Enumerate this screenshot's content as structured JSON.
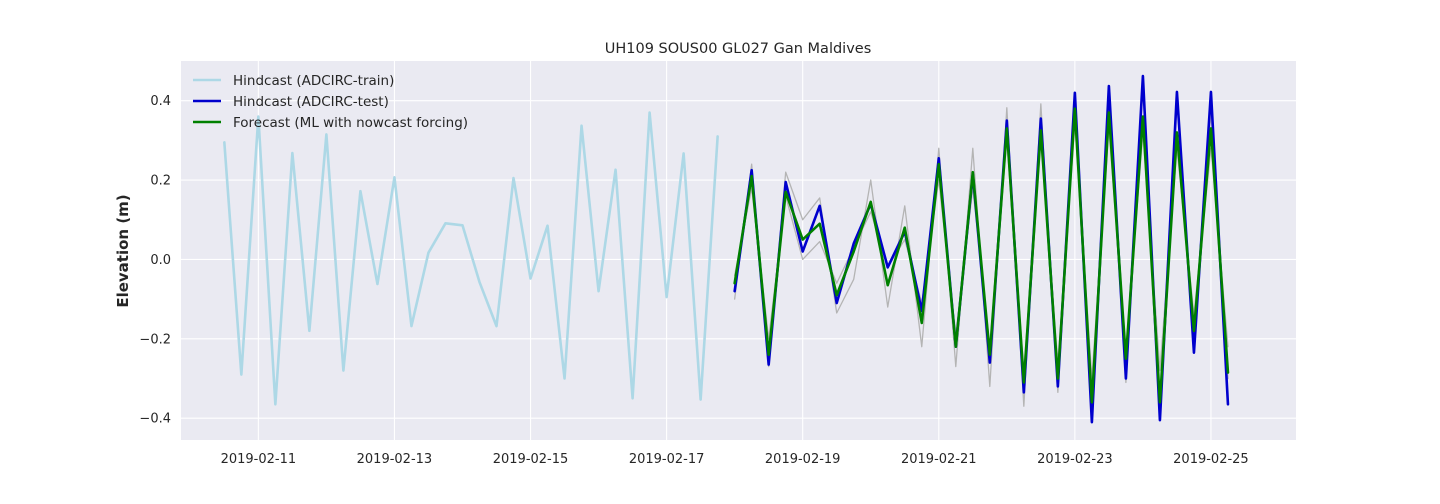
{
  "chart_data": {
    "type": "line",
    "title": "UH109 SOUS00 GL027 Gan Maldives",
    "xlabel": "",
    "ylabel": "Elevation (m)",
    "xlim": [
      "2019-02-09 20:43",
      "2019-02-26 06:00"
    ],
    "ylim": [
      -0.455,
      0.5
    ],
    "x_ticks": [
      "2019-02-11",
      "2019-02-13",
      "2019-02-15",
      "2019-02-17",
      "2019-02-19",
      "2019-02-21",
      "2019-02-23",
      "2019-02-25"
    ],
    "y_ticks": [
      -0.4,
      -0.2,
      0.0,
      0.2,
      0.4
    ],
    "y_tick_labels": [
      "−0.4",
      "−0.2",
      "0.0",
      "0.2",
      "0.4"
    ],
    "grid": true,
    "legend_position": "top-left",
    "background_color": "#eaeaf2",
    "grid_color": "#ffffff",
    "legend": [
      {
        "label": "Hindcast (ADCIRC-train)",
        "color": "#add8e6"
      },
      {
        "label": "Hindcast (ADCIRC-test)",
        "color": "#0000cd"
      },
      {
        "label": "Forecast (ML with nowcast forcing)",
        "color": "#008000"
      }
    ],
    "series": [
      {
        "name": "Hindcast (ADCIRC-train)",
        "color": "#add8e6",
        "x": [
          "2019-02-10 12:00",
          "2019-02-10 18:00",
          "2019-02-11 00:00",
          "2019-02-11 06:00",
          "2019-02-11 12:00",
          "2019-02-11 18:00",
          "2019-02-12 00:00",
          "2019-02-12 06:00",
          "2019-02-12 12:00",
          "2019-02-12 18:00",
          "2019-02-13 00:00",
          "2019-02-13 06:00",
          "2019-02-13 12:00",
          "2019-02-13 18:00",
          "2019-02-14 00:00",
          "2019-02-14 06:00",
          "2019-02-14 12:00",
          "2019-02-14 18:00",
          "2019-02-15 00:00",
          "2019-02-15 06:00",
          "2019-02-15 12:00",
          "2019-02-15 18:00",
          "2019-02-16 00:00",
          "2019-02-16 06:00",
          "2019-02-16 12:00",
          "2019-02-16 18:00",
          "2019-02-17 00:00",
          "2019-02-17 06:00",
          "2019-02-17 12:00",
          "2019-02-17 18:00"
        ],
        "values": [
          0.295,
          -0.29,
          0.36,
          -0.365,
          0.268,
          -0.18,
          0.315,
          -0.28,
          0.172,
          -0.062,
          0.207,
          -0.168,
          0.017,
          0.091,
          0.086,
          -0.057,
          -0.168,
          0.205,
          -0.048,
          0.085,
          -0.3,
          0.337,
          -0.08,
          0.226,
          -0.35,
          0.37,
          -0.095,
          0.267,
          -0.353,
          0.31
        ]
      },
      {
        "name": "",
        "color": "#b4b4b4",
        "x": [
          "2019-02-18 00:00",
          "2019-02-18 06:00",
          "2019-02-18 12:00",
          "2019-02-18 18:00",
          "2019-02-19 00:00",
          "2019-02-19 06:00",
          "2019-02-19 12:00",
          "2019-02-19 18:00",
          "2019-02-20 00:00",
          "2019-02-20 06:00",
          "2019-02-20 12:00",
          "2019-02-20 18:00",
          "2019-02-21 00:00",
          "2019-02-21 06:00",
          "2019-02-21 12:00",
          "2019-02-21 18:00",
          "2019-02-22 00:00",
          "2019-02-22 06:00",
          "2019-02-22 12:00",
          "2019-02-22 18:00",
          "2019-02-23 00:00",
          "2019-02-23 06:00",
          "2019-02-23 12:00",
          "2019-02-23 18:00",
          "2019-02-24 00:00",
          "2019-02-24 06:00",
          "2019-02-24 12:00",
          "2019-02-24 18:00",
          "2019-02-25 00:00",
          "2019-02-25 06:00"
        ],
        "values": [
          -0.1,
          0.24,
          -0.27,
          0.22,
          0.1,
          0.155,
          -0.135,
          -0.05,
          0.2,
          -0.12,
          0.135,
          -0.22,
          0.28,
          -0.27,
          0.28,
          -0.32,
          0.382,
          -0.37,
          0.392,
          -0.335,
          0.39,
          -0.38,
          0.42,
          -0.31,
          0.43,
          -0.38,
          0.4,
          -0.22,
          0.37,
          -0.3
        ]
      },
      {
        "name": "",
        "color": "#b4b4b4",
        "x": [
          "2019-02-18 00:00",
          "2019-02-18 06:00",
          "2019-02-18 12:00",
          "2019-02-18 18:00",
          "2019-02-19 00:00",
          "2019-02-19 06:00",
          "2019-02-19 12:00",
          "2019-02-19 18:00",
          "2019-02-20 00:00",
          "2019-02-20 06:00",
          "2019-02-20 12:00",
          "2019-02-20 18:00",
          "2019-02-21 00:00",
          "2019-02-21 06:00",
          "2019-02-21 12:00",
          "2019-02-21 18:00",
          "2019-02-22 00:00",
          "2019-02-22 06:00",
          "2019-02-22 12:00",
          "2019-02-22 18:00",
          "2019-02-23 00:00",
          "2019-02-23 06:00",
          "2019-02-23 12:00",
          "2019-02-23 18:00",
          "2019-02-24 00:00",
          "2019-02-24 06:00",
          "2019-02-24 12:00",
          "2019-02-24 18:00",
          "2019-02-25 00:00",
          "2019-02-25 06:00"
        ],
        "values": [
          -0.04,
          0.18,
          -0.2,
          0.16,
          0.0,
          0.045,
          -0.06,
          0.03,
          0.12,
          -0.02,
          0.05,
          -0.11,
          0.2,
          -0.19,
          0.18,
          -0.22,
          0.3,
          -0.28,
          0.3,
          -0.26,
          0.34,
          -0.3,
          0.33,
          -0.23,
          0.32,
          -0.28,
          0.28,
          -0.14,
          0.28,
          -0.22
        ]
      },
      {
        "name": "Hindcast (ADCIRC-test)",
        "color": "#0000cd",
        "x": [
          "2019-02-18 00:00",
          "2019-02-18 06:00",
          "2019-02-18 12:00",
          "2019-02-18 18:00",
          "2019-02-19 00:00",
          "2019-02-19 06:00",
          "2019-02-19 12:00",
          "2019-02-19 18:00",
          "2019-02-20 00:00",
          "2019-02-20 06:00",
          "2019-02-20 12:00",
          "2019-02-20 18:00",
          "2019-02-21 00:00",
          "2019-02-21 06:00",
          "2019-02-21 12:00",
          "2019-02-21 18:00",
          "2019-02-22 00:00",
          "2019-02-22 06:00",
          "2019-02-22 12:00",
          "2019-02-22 18:00",
          "2019-02-23 00:00",
          "2019-02-23 06:00",
          "2019-02-23 12:00",
          "2019-02-23 18:00",
          "2019-02-24 00:00",
          "2019-02-24 06:00",
          "2019-02-24 12:00",
          "2019-02-24 18:00",
          "2019-02-25 00:00",
          "2019-02-25 06:00"
        ],
        "values": [
          -0.08,
          0.225,
          -0.265,
          0.195,
          0.02,
          0.135,
          -0.11,
          0.04,
          0.14,
          -0.02,
          0.07,
          -0.13,
          0.255,
          -0.22,
          0.215,
          -0.26,
          0.35,
          -0.335,
          0.355,
          -0.32,
          0.42,
          -0.41,
          0.437,
          -0.3,
          0.462,
          -0.405,
          0.422,
          -0.235,
          0.422,
          -0.365
        ]
      },
      {
        "name": "Forecast (ML with nowcast forcing)",
        "color": "#008000",
        "x": [
          "2019-02-18 00:00",
          "2019-02-18 06:00",
          "2019-02-18 12:00",
          "2019-02-18 18:00",
          "2019-02-19 00:00",
          "2019-02-19 06:00",
          "2019-02-19 12:00",
          "2019-02-19 18:00",
          "2019-02-20 00:00",
          "2019-02-20 06:00",
          "2019-02-20 12:00",
          "2019-02-20 18:00",
          "2019-02-21 00:00",
          "2019-02-21 06:00",
          "2019-02-21 12:00",
          "2019-02-21 18:00",
          "2019-02-22 00:00",
          "2019-02-22 06:00",
          "2019-02-22 12:00",
          "2019-02-22 18:00",
          "2019-02-23 00:00",
          "2019-02-23 06:00",
          "2019-02-23 12:00",
          "2019-02-23 18:00",
          "2019-02-24 00:00",
          "2019-02-24 06:00",
          "2019-02-24 12:00",
          "2019-02-24 18:00",
          "2019-02-25 00:00",
          "2019-02-25 06:00"
        ],
        "values": [
          -0.06,
          0.21,
          -0.24,
          0.17,
          0.05,
          0.09,
          -0.09,
          0.02,
          0.145,
          -0.065,
          0.08,
          -0.16,
          0.24,
          -0.22,
          0.22,
          -0.24,
          0.33,
          -0.31,
          0.325,
          -0.3,
          0.38,
          -0.36,
          0.37,
          -0.25,
          0.36,
          -0.36,
          0.32,
          -0.18,
          0.33,
          -0.285
        ]
      }
    ]
  }
}
